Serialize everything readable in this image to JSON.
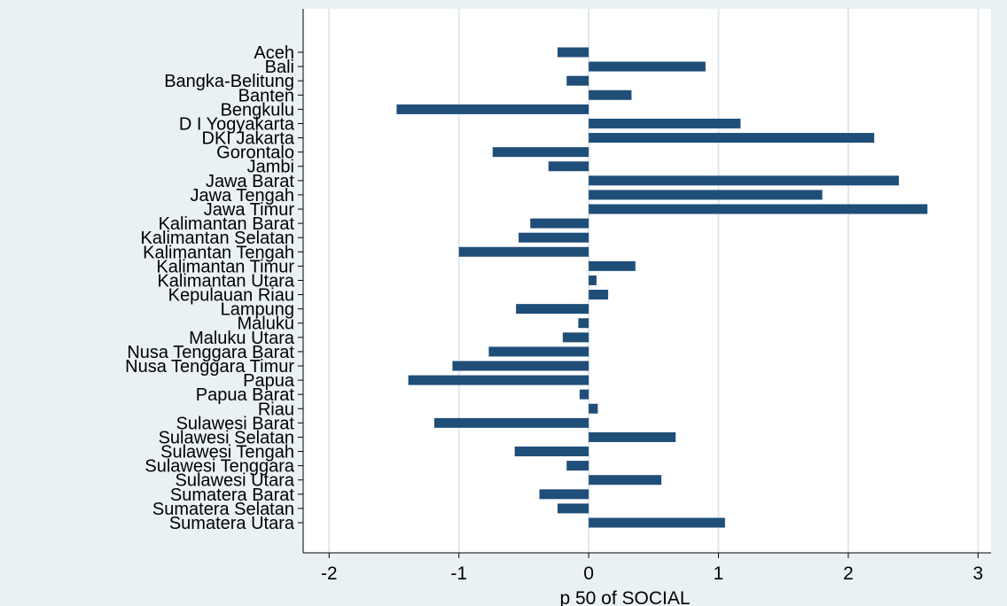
{
  "chart_data": {
    "type": "bar",
    "orientation": "horizontal",
    "xlabel": "p 50 of SOCIAL",
    "xlim": [
      -2.2,
      3.1
    ],
    "xticks": [
      -2,
      -1,
      0,
      1,
      2,
      3
    ],
    "grid": true,
    "legend": "none",
    "colors": {
      "bar": "#1f4e79",
      "background": "#eaf1f5",
      "plot_background": "#ffffff",
      "grid": "#dde9ee"
    },
    "categories": [
      "Aceh",
      "Bali",
      "Bangka-Belitung",
      "Banten",
      "Bengkulu",
      "D I Yogyakarta",
      "DKI Jakarta",
      "Gorontalo",
      "Jambi",
      "Jawa Barat",
      "Jawa Tengah",
      "Jawa Timur",
      "Kalimantan Barat",
      "Kalimantan Selatan",
      "Kalimantan Tengah",
      "Kalimantan Timur",
      "Kalimantan Utara",
      "Kepulauan Riau",
      "Lampung",
      "Maluku",
      "Maluku Utara",
      "Nusa Tenggara Barat",
      "Nusa Tenggara Timur",
      "Papua",
      "Papua Barat",
      "Riau",
      "Sulawesi Barat",
      "Sulawesi Selatan",
      "Sulawesi Tengah",
      "Sulawesi Tenggara",
      "Sulawesi Utara",
      "Sumatera Barat",
      "Sumatera Selatan",
      "Sumatera Utara"
    ],
    "values": [
      -0.24,
      0.9,
      -0.17,
      0.33,
      -1.48,
      1.17,
      2.2,
      -0.74,
      -0.31,
      2.39,
      1.8,
      2.61,
      -0.45,
      -0.54,
      -1.0,
      0.36,
      0.06,
      0.15,
      -0.56,
      -0.08,
      -0.2,
      -0.77,
      -1.05,
      -1.39,
      -0.07,
      0.07,
      -1.19,
      0.67,
      -0.57,
      -0.17,
      0.56,
      -0.38,
      -0.24,
      1.05
    ]
  }
}
